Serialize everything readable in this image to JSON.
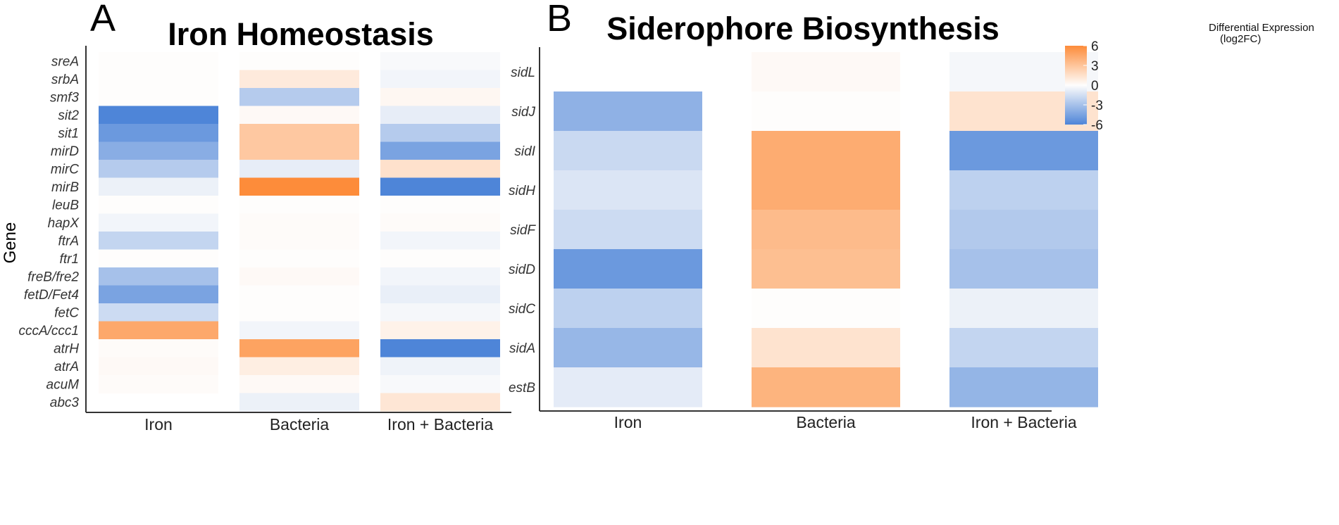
{
  "chart_data": [
    {
      "type": "heatmap",
      "panel": "A",
      "title": "Iron Homeostasis",
      "ylabel": "Gene",
      "columns": [
        "Iron",
        "Bacteria",
        "Iron + Bacteria"
      ],
      "rows": [
        "sreA",
        "srbA",
        "smf3",
        "sit2",
        "sit1",
        "mirD",
        "mirC",
        "mirB",
        "leuB",
        "hapX",
        "ftrA",
        "ftr1",
        "freB/fre2",
        "fetD/Fet4",
        "fetC",
        "cccA/ccc1",
        "atrH",
        "atrA",
        "acuM",
        "abc3"
      ],
      "values": [
        [
          0.0,
          0.0,
          -0.2
        ],
        [
          0.0,
          1.0,
          -0.4
        ],
        [
          0.0,
          -2.5,
          0.3
        ],
        [
          -6.0,
          0.2,
          -0.8
        ],
        [
          -5.0,
          2.8,
          -2.5
        ],
        [
          -4.0,
          2.8,
          -4.5
        ],
        [
          -2.5,
          -0.8,
          1.5
        ],
        [
          -0.6,
          6.0,
          -6.0
        ],
        [
          0.0,
          0.0,
          0.0
        ],
        [
          -0.4,
          0.1,
          0.1
        ],
        [
          -2.0,
          0.1,
          -0.4
        ],
        [
          0.0,
          0.0,
          0.0
        ],
        [
          -3.0,
          0.2,
          -0.4
        ],
        [
          -4.5,
          0.0,
          -0.7
        ],
        [
          -1.7,
          0.0,
          -0.3
        ],
        [
          4.5,
          -0.4,
          0.6
        ],
        [
          0.1,
          4.8,
          -6.0
        ],
        [
          0.2,
          0.8,
          -0.5
        ],
        [
          0.1,
          0.2,
          -0.2
        ],
        [
          null,
          -0.6,
          1.2
        ]
      ]
    },
    {
      "type": "heatmap",
      "panel": "B",
      "title": "Siderophore Biosynthesis",
      "columns": [
        "Iron",
        "Bacteria",
        "Iron + Bacteria"
      ],
      "rows": [
        "sidL",
        "sidJ",
        "sidI",
        "sidH",
        "sidF",
        "sidD",
        "sidC",
        "sidA",
        "estB"
      ],
      "values": [
        [
          null,
          0.2,
          -0.3
        ],
        [
          -3.8,
          0.0,
          1.4
        ],
        [
          -1.8,
          4.3,
          -5.0
        ],
        [
          -1.2,
          4.3,
          -2.2
        ],
        [
          -1.7,
          3.5,
          -2.6
        ],
        [
          -5.0,
          3.3,
          -3.0
        ],
        [
          -2.2,
          0.0,
          -0.6
        ],
        [
          -3.5,
          1.4,
          -2.0
        ],
        [
          -0.9,
          3.9,
          -3.6
        ]
      ]
    }
  ],
  "legend": {
    "title_line1": "Differential Expression",
    "title_line2": "(log2FC)",
    "ticks": [
      "6",
      "3",
      "0",
      "-3",
      "-6"
    ],
    "tick_values": [
      6,
      3,
      0,
      -3,
      -6
    ],
    "range": [
      -6,
      6
    ],
    "colors": {
      "low": "#4e85d8",
      "mid": "#fefdfc",
      "high": "#fd8c3a"
    }
  }
}
